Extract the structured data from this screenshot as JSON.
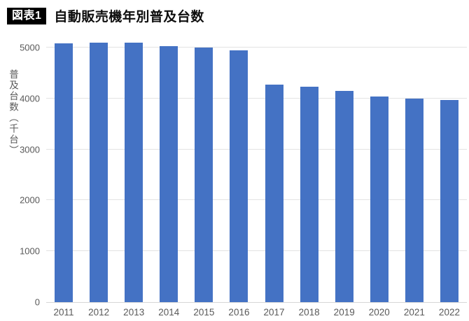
{
  "header": {
    "badge": "図表1",
    "title": "自動販売機年別普及台数"
  },
  "chart_data": {
    "type": "bar",
    "title": "自動販売機年別普及台数",
    "categories": [
      "2011",
      "2012",
      "2013",
      "2014",
      "2015",
      "2016",
      "2017",
      "2018",
      "2019",
      "2020",
      "2021",
      "2022"
    ],
    "values": [
      5084,
      5093,
      5094,
      5037,
      5002,
      4941,
      4271,
      4235,
      4149,
      4046,
      4004,
      3970
    ],
    "xlabel": "",
    "ylabel": "普及台数（千台）",
    "yticks": [
      0,
      1000,
      2000,
      3000,
      4000,
      5000
    ],
    "ylim": [
      0,
      5250
    ],
    "grid": true,
    "legend_position": "none",
    "bar_color": "#4472C4",
    "gridline_color": "#e3e3e3",
    "axis_text_color": "#595959"
  }
}
